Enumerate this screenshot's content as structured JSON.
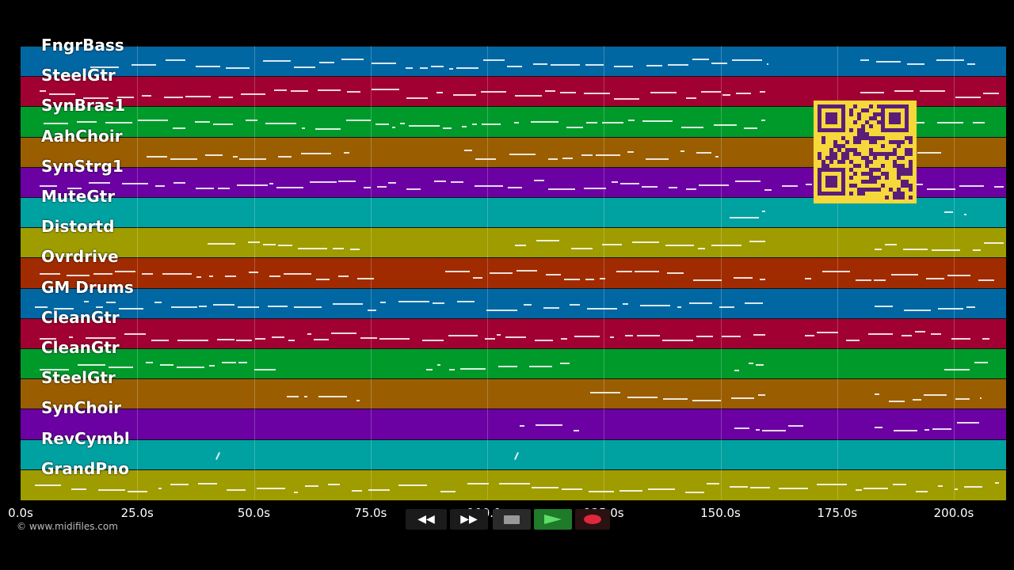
{
  "tracks": [
    {
      "name": "FngrBass",
      "color": "#0067a3"
    },
    {
      "name": "SteelGtr",
      "color": "#a10032"
    },
    {
      "name": "SynBras1",
      "color": "#009a2b"
    },
    {
      "name": "AahChoir",
      "color": "#9a5e00"
    },
    {
      "name": "SynStrg1",
      "color": "#6b00a3"
    },
    {
      "name": "MuteGtr",
      "color": "#00a1a1"
    },
    {
      "name": "Distortd",
      "color": "#9f9c00"
    },
    {
      "name": "Ovrdrive",
      "color": "#a12b00"
    },
    {
      "name": "GM Drums",
      "color": "#0067a3"
    },
    {
      "name": "CleanGtr",
      "color": "#a10032"
    },
    {
      "name": "CleanGtr",
      "color": "#009a2b"
    },
    {
      "name": "SteelGtr",
      "color": "#9a5e00"
    },
    {
      "name": "SynChoir",
      "color": "#6b00a3"
    },
    {
      "name": "RevCymbl",
      "color": "#00a1a1"
    },
    {
      "name": "GrandPno",
      "color": "#9f9c00"
    }
  ],
  "timeline": {
    "ticks": [
      "0.0s",
      "25.0s",
      "50.0s",
      "75.0s",
      "100.0s",
      "125.0s",
      "150.0s",
      "175.0s",
      "200.0s"
    ],
    "max_seconds": 211.6
  },
  "copyright": "© www.midifiles.com",
  "transport": {
    "rewind_icon": "rewind-icon",
    "fast_forward_icon": "fast-forward-icon",
    "stop_icon": "stop-icon",
    "play_icon": "play-icon",
    "record_icon": "record-icon",
    "play_color": "#2f8f2f",
    "record_color": "#d02030"
  },
  "qr_code": {
    "color": "#f6d83a",
    "ink": "#5a1e7a"
  }
}
